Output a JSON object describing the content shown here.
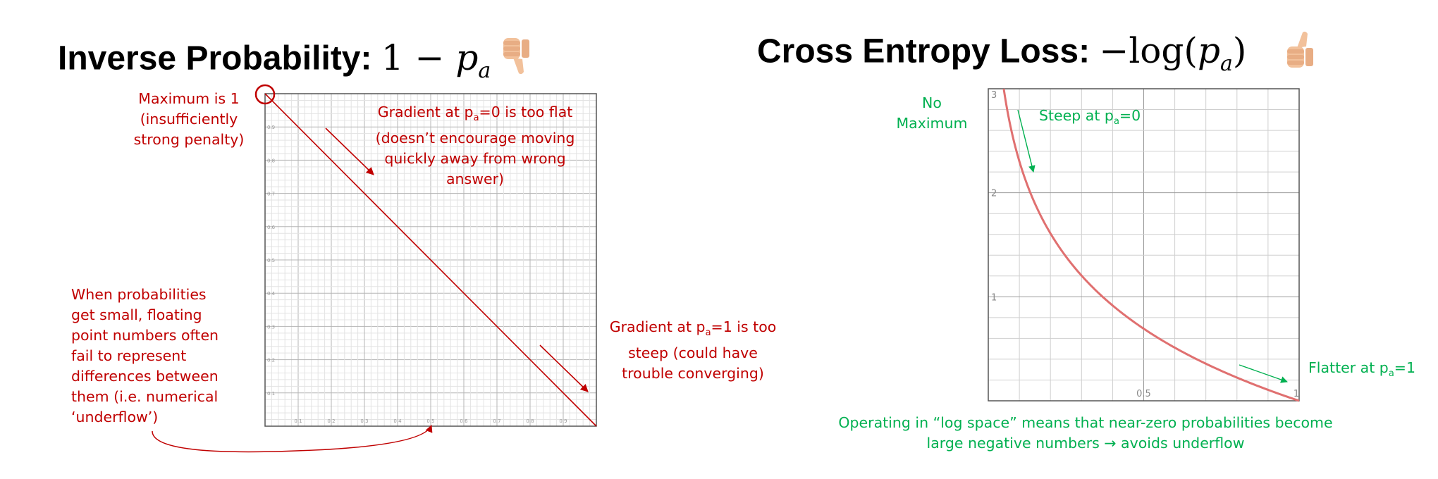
{
  "left_panel": {
    "title_text": "Inverse Probability:",
    "title_math_prefix": "1 − ",
    "title_math_var": "p",
    "title_math_sub": "a",
    "verdict_icon": "thumbs-down-icon",
    "annotations": {
      "maximum": [
        "Maximum is 1",
        "(insufficiently",
        "strong penalty)"
      ],
      "grad0_line1_pre": "Gradient at p",
      "grad0_line1_sub": "a",
      "grad0_line1_post": "=0 is too flat",
      "grad0_rest": [
        "(doesn’t encourage moving",
        "quickly away from wrong",
        "answer)"
      ],
      "grad1_line1_pre": "Gradient at p",
      "grad1_line1_sub": "a",
      "grad1_line1_post": "=1 is too",
      "grad1_rest": [
        "steep (could have",
        "trouble converging)"
      ],
      "underflow": [
        "When probabilities",
        "get small, floating",
        "point numbers often",
        "fail to represent",
        "differences between",
        "them (i.e. numerical",
        "‘underflow’)"
      ]
    }
  },
  "right_panel": {
    "title_text": "Cross Entropy Loss:",
    "title_math_prefix": "−log(",
    "title_math_var": "p",
    "title_math_sub": "a",
    "title_math_suffix": ")",
    "verdict_icon": "thumbs-up-icon",
    "annotations": {
      "no_max": [
        "No",
        "Maximum"
      ],
      "steep_pre": "Steep at p",
      "steep_sub": "a",
      "steep_post": "=0",
      "flat_pre": "Flatter at p",
      "flat_sub": "a",
      "flat_post": "=1",
      "log_space": [
        "Operating in “log space” means that near-zero probabilities become",
        "large negative numbers → avoids underflow"
      ]
    }
  },
  "colors": {
    "red": "#c00000",
    "green": "#00b050",
    "curve": "#e07070",
    "grid_minor": "#d9d9d9",
    "grid_major": "#999999",
    "thumb": "#f2c19b"
  },
  "chart_data": [
    {
      "type": "line",
      "x": [
        0,
        1
      ],
      "y": [
        1,
        0
      ],
      "xlim": [
        0,
        1
      ],
      "ylim": [
        0,
        1
      ],
      "xticks": [
        "0.1",
        "0.2",
        "0.3",
        "0.4",
        "0.5",
        "0.6",
        "0.7",
        "0.8",
        "0.9"
      ],
      "yticks": [
        "0.1",
        "0.2",
        "0.3",
        "0.4",
        "0.5",
        "0.6",
        "0.7",
        "0.8",
        "0.9"
      ],
      "grid": true
    },
    {
      "type": "line",
      "function": "-log(x)",
      "xlim": [
        0,
        1
      ],
      "ylim": [
        0,
        3
      ],
      "xticks": [
        "0.5",
        "1"
      ],
      "yticks": [
        "1",
        "2",
        "3"
      ],
      "grid": true
    }
  ]
}
